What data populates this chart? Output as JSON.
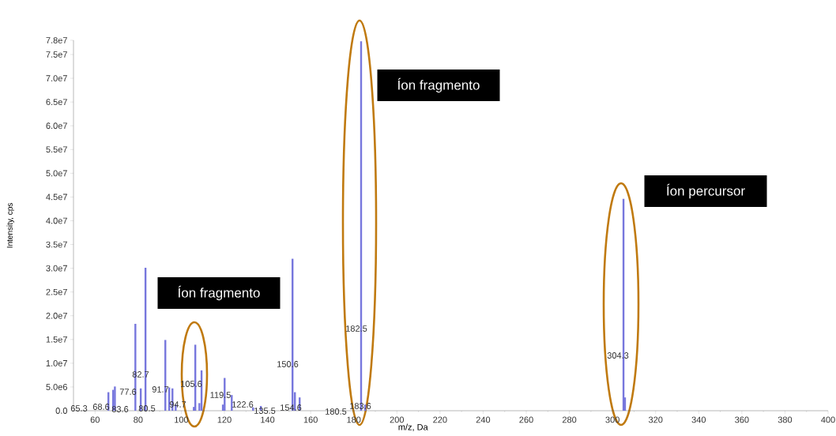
{
  "chart_data": {
    "type": "bar",
    "xlabel": "m/z, Da",
    "ylabel": "Intensity, cps",
    "x": [
      66.2,
      68.4,
      69.2,
      78.7,
      81.2,
      83.4,
      92.6,
      94.4,
      95.9,
      97.4,
      105.8,
      106.5,
      108.4,
      109.4,
      119.3,
      120.1,
      123.4,
      133.3,
      136.9,
      151.6,
      152.7,
      154.9,
      183.4,
      185.3,
      305.1,
      305.8
    ],
    "values": [
      3900000,
      4400000,
      5100000,
      18300000,
      4700000,
      30100000,
      14900000,
      4900000,
      4700000,
      1300000,
      800000,
      13900000,
      1600000,
      8500000,
      1300000,
      6900000,
      3300000,
      700000,
      1000000,
      32000000,
      3900000,
      2800000,
      77800000,
      1300000,
      44600000,
      2800000
    ],
    "color": "#7777dd",
    "xlim": [
      50,
      400
    ],
    "xticks": [
      60,
      80,
      100,
      120,
      140,
      160,
      180,
      200,
      220,
      240,
      260,
      280,
      300,
      320,
      340,
      360,
      380,
      400
    ],
    "ylim": [
      0,
      78000000
    ],
    "yticks": [
      {
        "value": 0,
        "label": "0.0"
      },
      {
        "value": 5000000,
        "label": "5.0e6"
      },
      {
        "value": 10000000,
        "label": "1.0e7"
      },
      {
        "value": 15000000,
        "label": "1.5e7"
      },
      {
        "value": 20000000,
        "label": "2.0e7"
      },
      {
        "value": 25000000,
        "label": "2.5e7"
      },
      {
        "value": 30000000,
        "label": "3.0e7"
      },
      {
        "value": 35000000,
        "label": "3.5e7"
      },
      {
        "value": 40000000,
        "label": "4.0e7"
      },
      {
        "value": 45000000,
        "label": "4.5e7"
      },
      {
        "value": 50000000,
        "label": "5.0e7"
      },
      {
        "value": 55000000,
        "label": "5.5e7"
      },
      {
        "value": 60000000,
        "label": "6.0e7"
      },
      {
        "value": 65000000,
        "label": "6.5e7"
      },
      {
        "value": 70000000,
        "label": "7.0e7"
      },
      {
        "value": 75000000,
        "label": "7.5e7"
      },
      {
        "value": 78000000,
        "label": "7.8e7"
      }
    ],
    "annotations": [
      "65.3",
      "68.6",
      "83.6",
      "80.5",
      "77.6",
      "82.7",
      "91.7",
      "94.7",
      "105.6",
      "119.5",
      "122.6",
      "135.5",
      "154.6",
      "180.5",
      "183.6",
      "150.6",
      "182.5",
      "304.3",
      "Íon fragmento",
      "Íon fragmento",
      "Íon percursor"
    ]
  }
}
